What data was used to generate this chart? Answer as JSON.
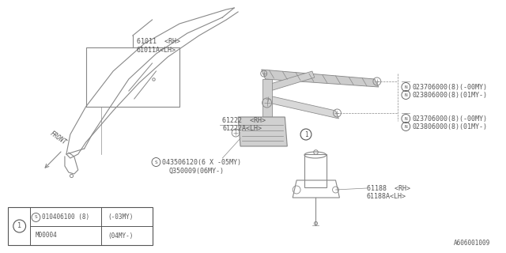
{
  "bg_color": "#ffffff",
  "line_color": "#888888",
  "text_color": "#555555",
  "fig_width": 6.4,
  "fig_height": 3.2,
  "dpi": 100,
  "footer": "A606001009",
  "label_61011_rh": "61011  <RH>",
  "label_61011_lh": "61011A<LH>",
  "label_61222_rh": "61222  <RH>",
  "label_61222_lh": "61222A<LH>",
  "label_N1a": "N023706000(8)(-00MY)",
  "label_N1b": "N023806000(8)(01MY-)",
  "label_N2a": "N023706000(8)(-00MY)",
  "label_N2b": "N023806000(8)(01MY-)",
  "label_S": "S043506120(6 X -05MY)",
  "label_Q": "Q350009(06MY-)",
  "label_61188_rh": "61188  <RH>",
  "label_61188_lh": "61188A<LH>",
  "table_s": "S010406100 (8)",
  "table_cond1": "(-03MY)",
  "table_part2": "M00004",
  "table_cond2": "(04MY-)"
}
